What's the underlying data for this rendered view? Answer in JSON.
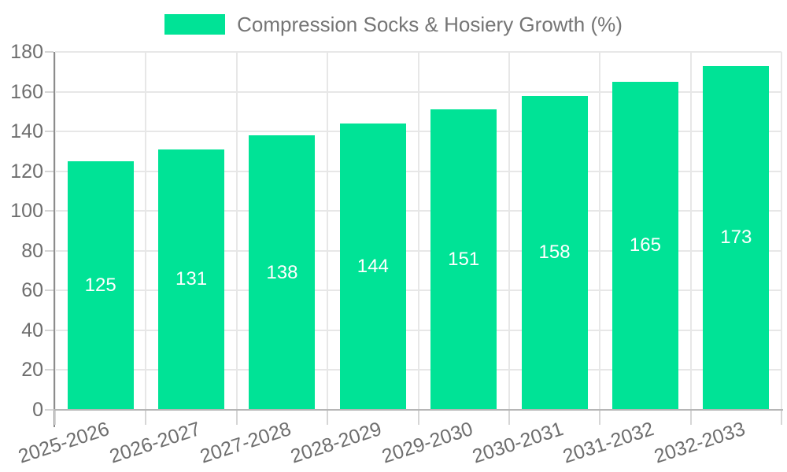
{
  "chart_data": {
    "type": "bar",
    "title": "Compression Socks & Hosiery Growth (%)",
    "legend": {
      "position": "top",
      "label": "Compression Socks & Hosiery Growth (%)"
    },
    "categories": [
      "2025-2026",
      "2026-2027",
      "2027-2028",
      "2028-2029",
      "2029-2030",
      "2030-2031",
      "2031-2032",
      "2032-2033"
    ],
    "series": [
      {
        "name": "Compression Socks & Hosiery Growth (%)",
        "values": [
          125,
          131,
          138,
          144,
          151,
          158,
          165,
          173
        ]
      }
    ],
    "value_labels": [
      "125",
      "131",
      "138",
      "144",
      "151",
      "158",
      "165",
      "173"
    ],
    "xlabel": "",
    "ylabel": "",
    "ylim": [
      0,
      180
    ],
    "yticks": [
      0,
      20,
      40,
      60,
      80,
      100,
      120,
      140,
      160,
      180
    ],
    "grid": {
      "horizontal": true,
      "vertical": true
    },
    "x_label_rotation_deg": -18,
    "colors": {
      "bar": "#00E396",
      "value_label": "#FFFFFF",
      "legend_text": "#757575",
      "axis_text": "#6E6E6E",
      "gridline": "#E7E7E7",
      "y_axis_line": "#8C8C8C",
      "x_axis_line": "#B6B6B6",
      "tick": "#D6D6D6",
      "background": "#FFFFFF"
    }
  }
}
